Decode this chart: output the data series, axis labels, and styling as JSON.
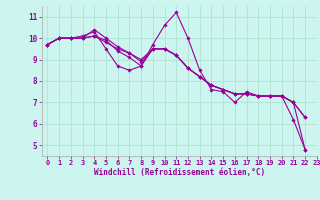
{
  "xlabel": "Windchill (Refroidissement éolien,°C)",
  "background_color": "#cdf5ef",
  "line_color": "#990099",
  "grid_color": "#aaddcc",
  "xlim": [
    -0.5,
    23
  ],
  "ylim": [
    4.5,
    11.5
  ],
  "yticks": [
    5,
    6,
    7,
    8,
    9,
    10,
    11
  ],
  "xticks": [
    0,
    1,
    2,
    3,
    4,
    5,
    6,
    7,
    8,
    9,
    10,
    11,
    12,
    13,
    14,
    15,
    16,
    17,
    18,
    19,
    20,
    21,
    22,
    23
  ],
  "series": [
    [
      9.7,
      10.0,
      10.0,
      10.1,
      10.3,
      9.5,
      8.7,
      8.5,
      8.7,
      9.7,
      10.6,
      11.2,
      10.0,
      8.5,
      7.6,
      7.5,
      7.0,
      7.5,
      7.3,
      7.3,
      7.3,
      6.2,
      4.8
    ],
    [
      9.7,
      10.0,
      10.0,
      10.0,
      10.1,
      9.8,
      9.5,
      9.3,
      9.0,
      9.5,
      9.5,
      9.2,
      8.6,
      8.2,
      7.8,
      7.6,
      7.4,
      7.4,
      7.3,
      7.3,
      7.3,
      7.0,
      6.3
    ],
    [
      9.7,
      10.0,
      10.0,
      10.0,
      10.4,
      10.0,
      9.6,
      9.3,
      8.9,
      9.5,
      9.5,
      9.2,
      8.6,
      8.2,
      7.8,
      7.6,
      7.4,
      7.4,
      7.3,
      7.3,
      7.3,
      7.0,
      6.3
    ],
    [
      9.7,
      10.0,
      10.0,
      10.0,
      10.1,
      9.9,
      9.4,
      9.1,
      8.7,
      9.5,
      9.5,
      9.2,
      8.6,
      8.2,
      7.8,
      7.6,
      7.4,
      7.4,
      7.3,
      7.3,
      7.3,
      7.0,
      4.8
    ]
  ],
  "marker": "D",
  "marker_size": 1.8,
  "linewidth": 0.8,
  "tick_fontsize": 5.0,
  "xlabel_fontsize": 5.5
}
